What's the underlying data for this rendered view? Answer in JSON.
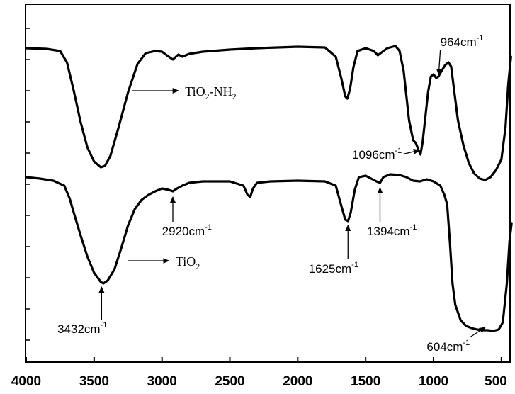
{
  "chart_data": {
    "type": "line",
    "title": "",
    "xlabel": "",
    "ylabel": "",
    "xlim": [
      4000,
      400
    ],
    "x_reversed": true,
    "y_ticks_labeled": false,
    "grid": false,
    "legend": "none",
    "x_ticks": [
      4000,
      3500,
      3000,
      2500,
      2000,
      1500,
      1000,
      500
    ],
    "x_tick_labels": [
      "4000",
      "3500",
      "3000",
      "2500",
      "2000",
      "1500",
      "1000",
      "500"
    ],
    "series": [
      {
        "name": "TiO2-NH2",
        "label_parts": {
          "base": "TiO",
          "sub1": "2",
          "mid": "-NH",
          "sub2": "2"
        },
        "points": [
          [
            4000,
            68
          ],
          [
            3850,
            69
          ],
          [
            3750,
            72
          ],
          [
            3700,
            88
          ],
          [
            3650,
            128
          ],
          [
            3600,
            172
          ],
          [
            3550,
            208
          ],
          [
            3500,
            228
          ],
          [
            3450,
            236
          ],
          [
            3420,
            234
          ],
          [
            3380,
            220
          ],
          [
            3320,
            180
          ],
          [
            3250,
            130
          ],
          [
            3180,
            90
          ],
          [
            3120,
            75
          ],
          [
            3050,
            72
          ],
          [
            3000,
            73
          ],
          [
            2950,
            80
          ],
          [
            2920,
            84
          ],
          [
            2880,
            77
          ],
          [
            2850,
            80
          ],
          [
            2800,
            76
          ],
          [
            2700,
            73
          ],
          [
            2500,
            70
          ],
          [
            2300,
            68
          ],
          [
            2000,
            66
          ],
          [
            1800,
            67
          ],
          [
            1720,
            80
          ],
          [
            1680,
            110
          ],
          [
            1650,
            136
          ],
          [
            1635,
            139
          ],
          [
            1615,
            126
          ],
          [
            1590,
            95
          ],
          [
            1560,
            72
          ],
          [
            1500,
            68
          ],
          [
            1440,
            72
          ],
          [
            1410,
            78
          ],
          [
            1390,
            75
          ],
          [
            1340,
            68
          ],
          [
            1280,
            65
          ],
          [
            1250,
            72
          ],
          [
            1220,
            100
          ],
          [
            1180,
            170
          ],
          [
            1150,
            198
          ],
          [
            1130,
            202
          ],
          [
            1110,
            212
          ],
          [
            1096,
            218
          ],
          [
            1080,
            200
          ],
          [
            1060,
            165
          ],
          [
            1040,
            130
          ],
          [
            1020,
            108
          ],
          [
            1000,
            105
          ],
          [
            980,
            110
          ],
          [
            964,
            108
          ],
          [
            940,
            100
          ],
          [
            915,
            92
          ],
          [
            890,
            88
          ],
          [
            870,
            94
          ],
          [
            850,
            125
          ],
          [
            820,
            170
          ],
          [
            780,
            205
          ],
          [
            740,
            230
          ],
          [
            700,
            245
          ],
          [
            660,
            252
          ],
          [
            620,
            254
          ],
          [
            580,
            250
          ],
          [
            540,
            240
          ],
          [
            500,
            225
          ],
          [
            470,
            180
          ],
          [
            450,
            120
          ],
          [
            430,
            80
          ]
        ]
      },
      {
        "name": "TiO2",
        "label_parts": {
          "base": "TiO",
          "sub1": "2",
          "mid": "",
          "sub2": ""
        },
        "points": [
          [
            4000,
            250
          ],
          [
            3900,
            252
          ],
          [
            3800,
            255
          ],
          [
            3720,
            262
          ],
          [
            3680,
            280
          ],
          [
            3650,
            300
          ],
          [
            3600,
            332
          ],
          [
            3550,
            362
          ],
          [
            3500,
            385
          ],
          [
            3450,
            398
          ],
          [
            3432,
            400
          ],
          [
            3400,
            396
          ],
          [
            3350,
            380
          ],
          [
            3300,
            350
          ],
          [
            3250,
            318
          ],
          [
            3200,
            295
          ],
          [
            3150,
            282
          ],
          [
            3100,
            275
          ],
          [
            3050,
            270
          ],
          [
            3000,
            266
          ],
          [
            2950,
            268
          ],
          [
            2920,
            270
          ],
          [
            2890,
            266
          ],
          [
            2850,
            262
          ],
          [
            2800,
            258
          ],
          [
            2700,
            256
          ],
          [
            2500,
            256
          ],
          [
            2400,
            262
          ],
          [
            2370,
            275
          ],
          [
            2350,
            278
          ],
          [
            2330,
            266
          ],
          [
            2300,
            258
          ],
          [
            2200,
            256
          ],
          [
            2000,
            255
          ],
          [
            1800,
            256
          ],
          [
            1720,
            262
          ],
          [
            1680,
            290
          ],
          [
            1650,
            310
          ],
          [
            1630,
            312
          ],
          [
            1610,
            300
          ],
          [
            1580,
            268
          ],
          [
            1550,
            250
          ],
          [
            1500,
            248
          ],
          [
            1450,
            253
          ],
          [
            1420,
            256
          ],
          [
            1394,
            258
          ],
          [
            1370,
            250
          ],
          [
            1320,
            246
          ],
          [
            1250,
            247
          ],
          [
            1200,
            250
          ],
          [
            1150,
            255
          ],
          [
            1100,
            256
          ],
          [
            1050,
            253
          ],
          [
            1000,
            256
          ],
          [
            950,
            262
          ],
          [
            920,
            275
          ],
          [
            900,
            288
          ],
          [
            880,
            340
          ],
          [
            860,
            400
          ],
          [
            840,
            430
          ],
          [
            800,
            452
          ],
          [
            760,
            460
          ],
          [
            720,
            463
          ],
          [
            680,
            465
          ],
          [
            640,
            466
          ],
          [
            600,
            466
          ],
          [
            560,
            467
          ],
          [
            520,
            465
          ],
          [
            490,
            455
          ],
          [
            460,
            400
          ],
          [
            440,
            340
          ],
          [
            425,
            315
          ]
        ]
      }
    ],
    "annotations": [
      {
        "id": "964",
        "value": "964",
        "unit": "cm",
        "exp": "-1",
        "text_pos": [
          950,
          65
        ],
        "arrow_to": [
          962,
          105
        ]
      },
      {
        "id": "1096",
        "value": "1096",
        "unit": "cm",
        "exp": "-1",
        "text_pos": [
          1600,
          224
        ],
        "arrow_to": [
          1105,
          212
        ]
      },
      {
        "id": "2920",
        "value": "2920",
        "unit": "cm",
        "exp": "-1",
        "text_pos": [
          3000,
          332
        ],
        "arrow_to": [
          2920,
          278
        ]
      },
      {
        "id": "1625",
        "value": "1625",
        "unit": "cm",
        "exp": "-1",
        "text_pos": [
          1920,
          385
        ],
        "arrow_to": [
          1630,
          318
        ]
      },
      {
        "id": "1394",
        "value": "1394",
        "unit": "cm",
        "exp": "-1",
        "text_pos": [
          1490,
          332
        ],
        "arrow_to": [
          1394,
          265
        ]
      },
      {
        "id": "3432",
        "value": "3432",
        "unit": "cm",
        "exp": "-1",
        "text_pos": [
          3770,
          470
        ],
        "arrow_to": [
          3445,
          405
        ]
      },
      {
        "id": "604",
        "value": "604",
        "unit": "cm",
        "exp": "-1",
        "text_pos": [
          1050,
          495
        ],
        "arrow_to": [
          620,
          462
        ]
      }
    ],
    "series_pointers": [
      {
        "series": "TiO2-NH2",
        "from": [
          3220,
          128
        ],
        "to": [
          2880,
          128
        ],
        "text_pos": [
          2830,
          135
        ]
      },
      {
        "series": "TiO2",
        "from": [
          3250,
          368
        ],
        "to": [
          2950,
          368
        ],
        "text_pos": [
          2900,
          375
        ]
      }
    ]
  }
}
